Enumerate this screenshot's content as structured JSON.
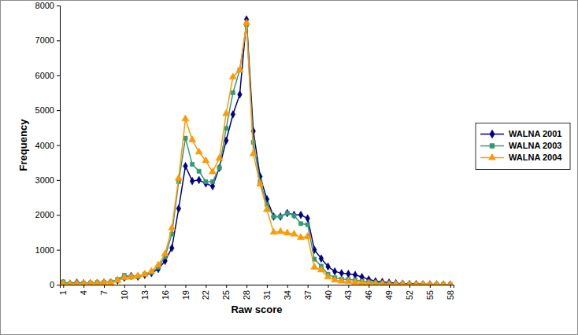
{
  "chart_data": {
    "type": "line",
    "x_label": "Raw score",
    "y_label": "Frequency",
    "x": [
      1,
      2,
      3,
      4,
      5,
      6,
      7,
      8,
      9,
      10,
      11,
      12,
      13,
      14,
      15,
      16,
      17,
      18,
      19,
      20,
      21,
      22,
      23,
      24,
      25,
      26,
      27,
      28,
      29,
      30,
      31,
      32,
      33,
      34,
      35,
      36,
      37,
      38,
      39,
      40,
      41,
      42,
      43,
      44,
      45,
      46,
      47,
      48,
      49,
      50,
      51,
      52,
      53,
      54,
      55,
      56,
      57,
      58
    ],
    "xlim": [
      0.5,
      58.5
    ],
    "xticks": [
      1,
      4,
      7,
      10,
      13,
      16,
      19,
      22,
      25,
      28,
      31,
      34,
      37,
      40,
      43,
      46,
      49,
      52,
      55,
      58
    ],
    "ylim": [
      0,
      8000
    ],
    "yticks": [
      0,
      1000,
      2000,
      3000,
      4000,
      5000,
      6000,
      7000,
      8000
    ],
    "grid": false,
    "legend": "right",
    "series": [
      {
        "name": "WALNA 2001",
        "color": "#000080",
        "marker": "diamond",
        "line_style": "solid",
        "values": [
          50,
          30,
          60,
          40,
          40,
          50,
          60,
          70,
          120,
          200,
          250,
          230,
          280,
          330,
          450,
          680,
          1050,
          2180,
          3400,
          2970,
          3000,
          2900,
          2820,
          3350,
          4130,
          4880,
          5450,
          7600,
          4400,
          3100,
          2450,
          1950,
          1950,
          2050,
          2000,
          2000,
          1900,
          1000,
          750,
          520,
          380,
          330,
          310,
          280,
          220,
          150,
          100,
          80,
          60,
          40,
          30,
          20,
          20,
          10,
          10,
          10,
          5,
          5
        ]
      },
      {
        "name": "WALNA 2003",
        "color": "#339977",
        "marker": "square",
        "line_style": "solid",
        "values": [
          80,
          30,
          50,
          40,
          50,
          60,
          70,
          80,
          150,
          270,
          220,
          230,
          300,
          350,
          500,
          800,
          1450,
          2950,
          4200,
          3450,
          3250,
          2950,
          2950,
          3350,
          4480,
          5500,
          6150,
          7450,
          4080,
          2950,
          2300,
          1950,
          1950,
          2050,
          1980,
          1750,
          1720,
          730,
          530,
          300,
          200,
          160,
          150,
          130,
          100,
          80,
          60,
          40,
          30,
          20,
          20,
          10,
          10,
          10,
          5,
          5,
          5,
          0
        ]
      },
      {
        "name": "WALNA 2004",
        "color": "#ff9900",
        "marker": "triangle",
        "line_style": "solid",
        "values": [
          30,
          20,
          30,
          30,
          40,
          40,
          50,
          60,
          120,
          200,
          220,
          250,
          300,
          380,
          560,
          880,
          1620,
          3050,
          4750,
          4150,
          3800,
          3550,
          3230,
          3620,
          4900,
          5950,
          6150,
          7500,
          3750,
          2880,
          2150,
          1500,
          1520,
          1480,
          1450,
          1350,
          1380,
          500,
          420,
          220,
          130,
          100,
          90,
          70,
          50,
          40,
          30,
          20,
          10,
          10,
          10,
          5,
          5,
          5,
          0,
          0,
          0,
          0
        ]
      }
    ]
  }
}
